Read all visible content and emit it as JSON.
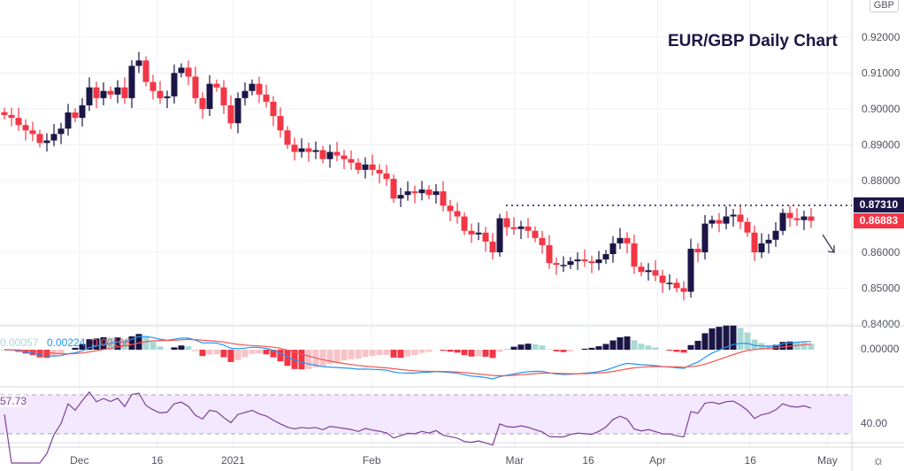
{
  "title": "EUR/GBP Daily Chart",
  "currency_badge": "GBP",
  "price_tags": {
    "resistance": "0.87310",
    "last": "0.86883"
  },
  "macd_values": [
    "0.00057",
    "0.00224",
    "0.00168"
  ],
  "rsi_value": "57.73",
  "macd_axis_label": "0.00000",
  "rsi_axis_label": "40.00",
  "settings_icon": "gear-icon",
  "colors": {
    "up": "#1b1646",
    "down": "#f23645",
    "macd": "#2196f3",
    "signal": "#f4544f",
    "rsi": "#7e3f98",
    "rsi_band": "#f3e8fd"
  },
  "chart_data": {
    "type": "candlestick",
    "title": "EUR/GBP Daily Chart",
    "y_ticks": [
      "0.92000",
      "0.91000",
      "0.90000",
      "0.89000",
      "0.88000",
      "0.86000",
      "0.85000",
      "0.84000"
    ],
    "y_tick_values": [
      0.92,
      0.91,
      0.9,
      0.89,
      0.88,
      0.86,
      0.85,
      0.84
    ],
    "ylim": [
      0.8376,
      0.924
    ],
    "x_ticks": [
      "Dec",
      "16",
      "2021",
      "Feb",
      "Mar",
      "16",
      "Apr",
      "16",
      "May"
    ],
    "x_tick_index": [
      10.6,
      21.6,
      32.3,
      51.9,
      72.1,
      82.5,
      92.3,
      105.4,
      116.3
    ],
    "resistance": 0.8731,
    "close": [
      0.8983,
      0.8975,
      0.8955,
      0.894,
      0.893,
      0.8905,
      0.8912,
      0.893,
      0.8945,
      0.899,
      0.8975,
      0.901,
      0.906,
      0.903,
      0.905,
      0.904,
      0.906,
      0.903,
      0.912,
      0.9135,
      0.9075,
      0.905,
      0.903,
      0.9035,
      0.91,
      0.9115,
      0.909,
      0.903,
      0.9,
      0.907,
      0.906,
      0.901,
      0.896,
      0.903,
      0.905,
      0.907,
      0.904,
      0.902,
      0.898,
      0.894,
      0.89,
      0.888,
      0.889,
      0.888,
      0.8885,
      0.886,
      0.888,
      0.887,
      0.886,
      0.885,
      0.883,
      0.8845,
      0.883,
      0.882,
      0.8805,
      0.875,
      0.876,
      0.877,
      0.8765,
      0.8775,
      0.876,
      0.877,
      0.873,
      0.8715,
      0.87,
      0.866,
      0.865,
      0.8655,
      0.863,
      0.86,
      0.8695,
      0.867,
      0.8665,
      0.8672,
      0.866,
      0.864,
      0.862,
      0.857,
      0.8565,
      0.8565,
      0.8575,
      0.858,
      0.8575,
      0.857,
      0.858,
      0.8595,
      0.8625,
      0.864,
      0.8625,
      0.856,
      0.8545,
      0.855,
      0.8535,
      0.8515,
      0.8515,
      0.85,
      0.849,
      0.861,
      0.86,
      0.868,
      0.869,
      0.868,
      0.87,
      0.8705,
      0.8685,
      0.8655,
      0.86,
      0.8625,
      0.8635,
      0.866,
      0.871,
      0.8695,
      0.869,
      0.87,
      0.8688
    ],
    "indicators": [
      "MACD",
      "RSI"
    ]
  }
}
